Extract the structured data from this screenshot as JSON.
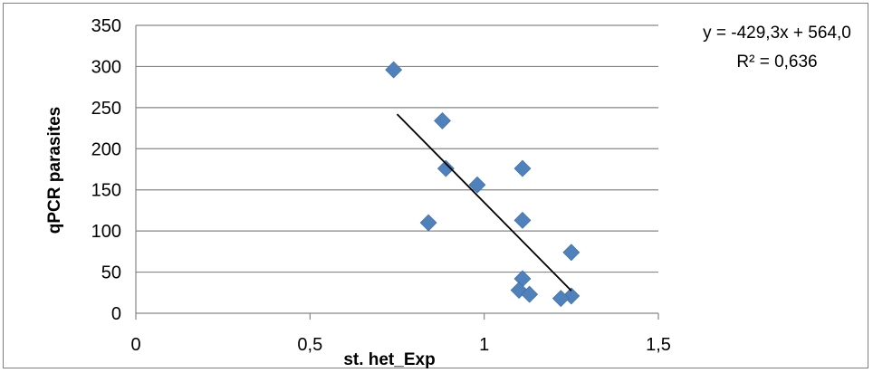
{
  "chart_data": {
    "type": "scatter",
    "xlabel": "st. het_Exp",
    "ylabel": "qPCR parasites",
    "xlim": [
      0,
      1.5
    ],
    "ylim": [
      0,
      350
    ],
    "x_ticks": [
      "0",
      "0,5",
      "1",
      "1,5"
    ],
    "y_ticks": [
      "0",
      "50",
      "100",
      "150",
      "200",
      "250",
      "300",
      "350"
    ],
    "grid": "horizontal",
    "marker": "diamond",
    "marker_color": "#4f81bd",
    "trendline": {
      "type": "linear",
      "slope": -429.3,
      "intercept": 564.0,
      "x_range": [
        0.75,
        1.25
      ],
      "equation": "y = -429,3x + 564,0",
      "r2": "R² = 0,636"
    },
    "points": [
      {
        "x": 0.74,
        "y": 296
      },
      {
        "x": 0.88,
        "y": 234
      },
      {
        "x": 0.89,
        "y": 176
      },
      {
        "x": 0.84,
        "y": 110
      },
      {
        "x": 0.98,
        "y": 156
      },
      {
        "x": 1.11,
        "y": 176
      },
      {
        "x": 1.11,
        "y": 113
      },
      {
        "x": 1.11,
        "y": 42
      },
      {
        "x": 1.1,
        "y": 28
      },
      {
        "x": 1.13,
        "y": 23
      },
      {
        "x": 1.25,
        "y": 74
      },
      {
        "x": 1.25,
        "y": 21
      },
      {
        "x": 1.22,
        "y": 18
      }
    ]
  }
}
